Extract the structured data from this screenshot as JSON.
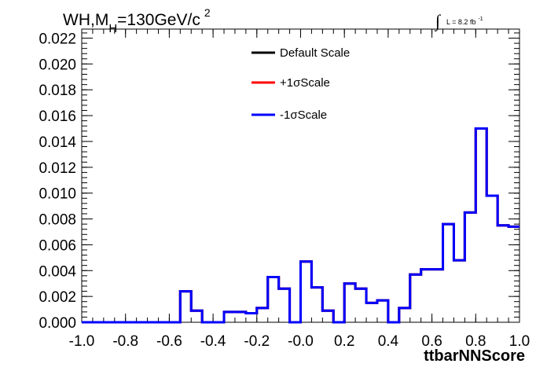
{
  "chart_data": {
    "type": "line",
    "title_main": "WH,M",
    "title_sub": "H",
    "title_rest": "=130GeV/c",
    "title_sup": "2",
    "lumi_integral": "∫",
    "lumi_text": "L = 8.2 fb",
    "lumi_sup": "-1",
    "xlabel": "ttbarNNScore",
    "ylabel": "",
    "xlim": [
      -1.0,
      1.0
    ],
    "ylim": [
      0.0,
      0.0227
    ],
    "x_ticks": [
      "-1.0",
      "-0.8",
      "-0.6",
      "-0.4",
      "-0.2",
      "-0.0",
      "0.2",
      "0.4",
      "0.6",
      "0.8",
      "1.0"
    ],
    "y_ticks": [
      "0.000",
      "0.002",
      "0.004",
      "0.006",
      "0.008",
      "0.010",
      "0.012",
      "0.014",
      "0.016",
      "0.018",
      "0.020",
      "0.022"
    ],
    "legend_position": "top-center",
    "bin_edges": [
      -1.0,
      -0.95,
      -0.9,
      -0.85,
      -0.8,
      -0.75,
      -0.7,
      -0.65,
      -0.6,
      -0.55,
      -0.5,
      -0.45,
      -0.4,
      -0.35,
      -0.3,
      -0.25,
      -0.2,
      -0.15,
      -0.1,
      -0.05,
      0.0,
      0.05,
      0.1,
      0.15,
      0.2,
      0.25,
      0.3,
      0.35,
      0.4,
      0.45,
      0.5,
      0.55,
      0.6,
      0.65,
      0.7,
      0.75,
      0.8,
      0.85,
      0.9,
      0.95,
      1.0
    ],
    "series": [
      {
        "name": "Default Scale",
        "color": "#000000",
        "values": [
          0,
          0,
          0,
          0,
          0,
          0,
          0,
          0,
          0,
          0.0024,
          0.0009,
          0,
          0,
          0.0008,
          0.0008,
          0.0007,
          0.0011,
          0.0035,
          0.0026,
          0,
          0.0047,
          0.0027,
          0.0009,
          0,
          0.003,
          0.0026,
          0.0015,
          0.0017,
          0,
          0.0011,
          0.0037,
          0.0041,
          0.0041,
          0.0076,
          0.0048,
          0.0085,
          0.015,
          0.0098,
          0.0075,
          0.0074
        ]
      },
      {
        "name": "+1σScale",
        "color": "#ff0000",
        "values": [
          0,
          0,
          0,
          0,
          0,
          0,
          0,
          0,
          0,
          0.0024,
          0.0009,
          0,
          0,
          0.0008,
          0.0008,
          0.0007,
          0.0011,
          0.0035,
          0.0026,
          0,
          0.0047,
          0.0027,
          0.0009,
          0,
          0.003,
          0.0026,
          0.0015,
          0.0017,
          0,
          0.0011,
          0.0037,
          0.0041,
          0.0041,
          0.0076,
          0.0048,
          0.0085,
          0.015,
          0.0098,
          0.0075,
          0.0074
        ]
      },
      {
        "name": "-1σScale",
        "color": "#0000ff",
        "values": [
          0,
          0,
          0,
          0,
          0,
          0,
          0,
          0,
          0,
          0.0024,
          0.0009,
          0,
          0,
          0.0008,
          0.0008,
          0.0007,
          0.0011,
          0.0035,
          0.0026,
          0,
          0.0047,
          0.0027,
          0.0009,
          0,
          0.003,
          0.0026,
          0.0015,
          0.0017,
          0,
          0.0011,
          0.0037,
          0.0041,
          0.0041,
          0.0076,
          0.0048,
          0.0085,
          0.015,
          0.0098,
          0.0075,
          0.0074
        ]
      }
    ]
  }
}
